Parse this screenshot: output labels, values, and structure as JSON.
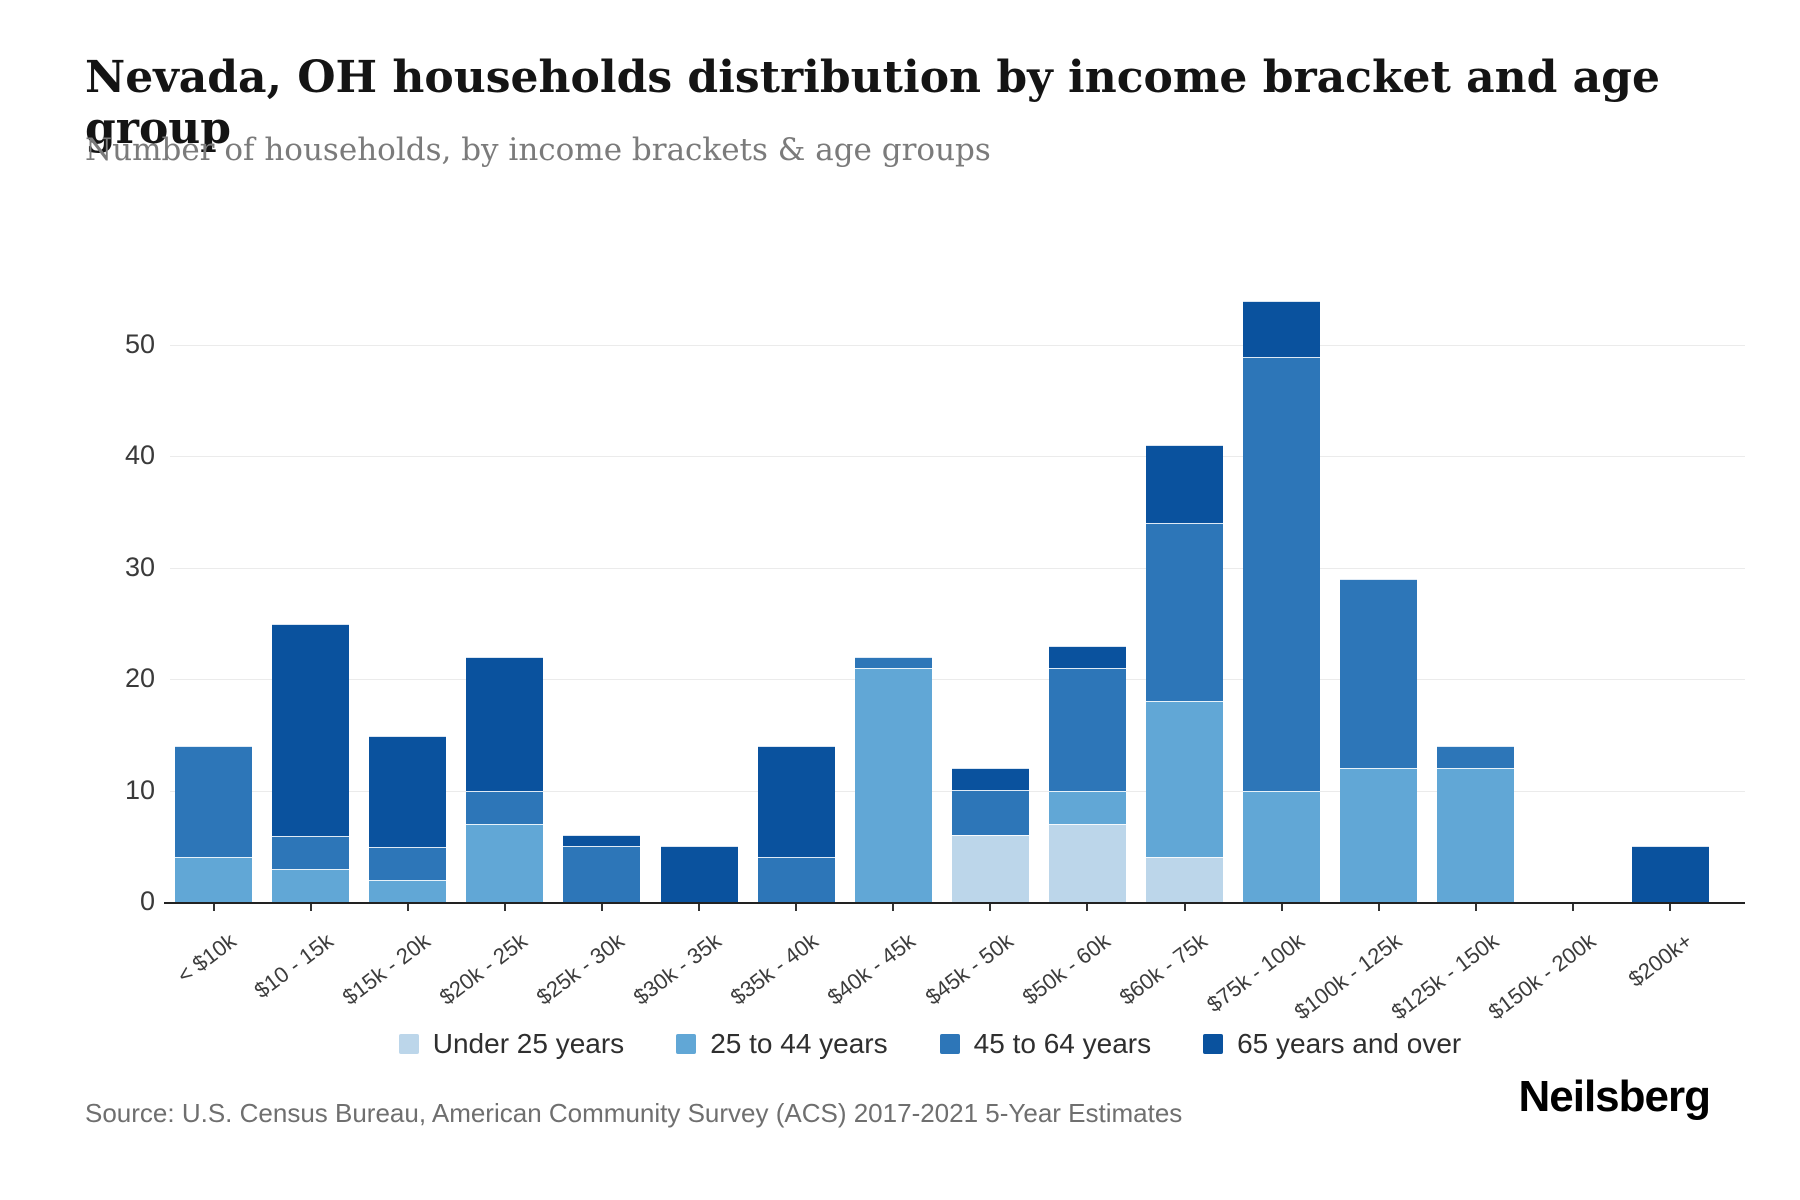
{
  "header": {
    "title": "Nevada, OH households distribution by income bracket and age group",
    "subtitle": "Number of households, by income brackets & age groups"
  },
  "chart_data": {
    "type": "bar",
    "stacked": true,
    "title": "Nevada, OH households distribution by income bracket and age group",
    "xlabel": "",
    "ylabel": "Number of households",
    "ylim": [
      0,
      55
    ],
    "yticks": [
      0,
      10,
      20,
      30,
      40,
      50
    ],
    "grid": true,
    "legend_position": "bottom",
    "categories": [
      "< $10k",
      "$10 - 15k",
      "$15k - 20k",
      "$20k - 25k",
      "$25k - 30k",
      "$30k - 35k",
      "$35k - 40k",
      "$40k - 45k",
      "$45k - 50k",
      "$50k - 60k",
      "$60k - 75k",
      "$75k - 100k",
      "$100k - 125k",
      "$125k - 150k",
      "$150k - 200k",
      "$200k+"
    ],
    "series": [
      {
        "name": "Under 25 years",
        "color": "#bcd6ea",
        "values": [
          0,
          0,
          0,
          0,
          0,
          0,
          0,
          0,
          6,
          7,
          4,
          0,
          0,
          0,
          0,
          0
        ]
      },
      {
        "name": "25 to 44 years",
        "color": "#61a7d6",
        "values": [
          4,
          3,
          2,
          7,
          0,
          0,
          0,
          21,
          0,
          3,
          14,
          10,
          12,
          12,
          0,
          0
        ]
      },
      {
        "name": "45 to 64 years",
        "color": "#2d76b8",
        "values": [
          10,
          3,
          3,
          3,
          5,
          0,
          4,
          1,
          4,
          11,
          16,
          39,
          17,
          2,
          0,
          0
        ]
      },
      {
        "name": "65 years and over",
        "color": "#0a529e",
        "values": [
          0,
          19,
          10,
          12,
          1,
          5,
          10,
          0,
          2,
          2,
          7,
          5,
          0,
          0,
          0,
          5
        ]
      }
    ],
    "totals": [
      14,
      25,
      15,
      22,
      6,
      5,
      14,
      22,
      12,
      23,
      41,
      54,
      29,
      14,
      0,
      5
    ]
  },
  "footer": {
    "source": "Source: U.S. Census Bureau, American Community Survey (ACS) 2017-2021 5-Year Estimates",
    "brand": "Neilsberg"
  }
}
